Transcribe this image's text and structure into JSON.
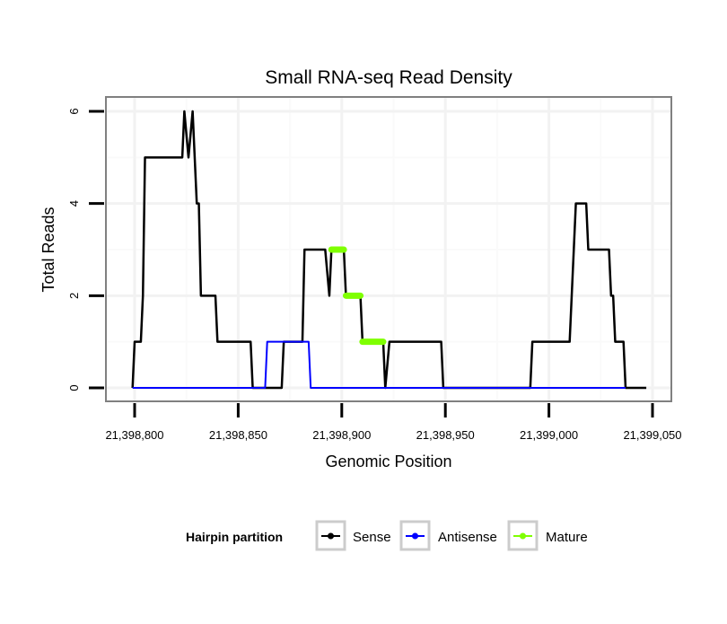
{
  "chart_data": {
    "type": "line",
    "title": "Small RNA-seq Read Density",
    "xlabel": "Genomic Position",
    "ylabel": "Total Reads",
    "xlim": [
      21398785,
      21399060
    ],
    "ylim": [
      -0.3,
      6.3
    ],
    "x_ticks": [
      21398800,
      21398850,
      21398900,
      21398950,
      21399000,
      21399050
    ],
    "x_tick_labels": [
      "21,398,800",
      "21,398,850",
      "21,398,900",
      "21,398,950",
      "21,399,000",
      "21,399,050"
    ],
    "y_ticks": [
      0,
      2,
      4,
      6
    ],
    "y_tick_labels": [
      "0",
      "2",
      "4",
      "6"
    ],
    "grid": true,
    "legend": {
      "title": "Hairpin partition",
      "placement": "bottom"
    },
    "series": [
      {
        "name": "Sense",
        "color": "#000000",
        "x": [
          21398799,
          21398800,
          21398803,
          21398804,
          21398805,
          21398823,
          21398824,
          21398826,
          21398828,
          21398830,
          21398831,
          21398832,
          21398839,
          21398840,
          21398856,
          21398857,
          21398871,
          21398872,
          21398881,
          21398882,
          21398892,
          21398894,
          21398895,
          21398901,
          21398902,
          21398909,
          21398910,
          21398920,
          21398921,
          21398923,
          21398948,
          21398949,
          21398991,
          21398992,
          21399010,
          21399013,
          21399018,
          21399019,
          21399029,
          21399030,
          21399031,
          21399032,
          21399036,
          21399037,
          21399047
        ],
        "y": [
          0,
          1,
          1,
          2,
          5,
          5,
          6,
          5,
          6,
          4,
          4,
          2,
          2,
          1,
          1,
          0,
          0,
          1,
          1,
          3,
          3,
          2,
          3,
          3,
          2,
          2,
          1,
          1,
          0,
          1,
          1,
          0,
          0,
          1,
          1,
          4,
          4,
          3,
          3,
          2,
          2,
          1,
          1,
          0,
          0
        ]
      },
      {
        "name": "Antisense",
        "color": "#0000ff",
        "x": [
          21398799,
          21398863,
          21398864,
          21398884,
          21398885,
          21399037
        ],
        "y": [
          0,
          0,
          1,
          1,
          0,
          0
        ]
      },
      {
        "name": "Mature",
        "color": "#7fff00",
        "segments": [
          {
            "x": [
              21398895,
              21398901
            ],
            "y": 3
          },
          {
            "x": [
              21398902,
              21398909
            ],
            "y": 2
          },
          {
            "x": [
              21398910,
              21398920
            ],
            "y": 1
          }
        ]
      }
    ]
  }
}
